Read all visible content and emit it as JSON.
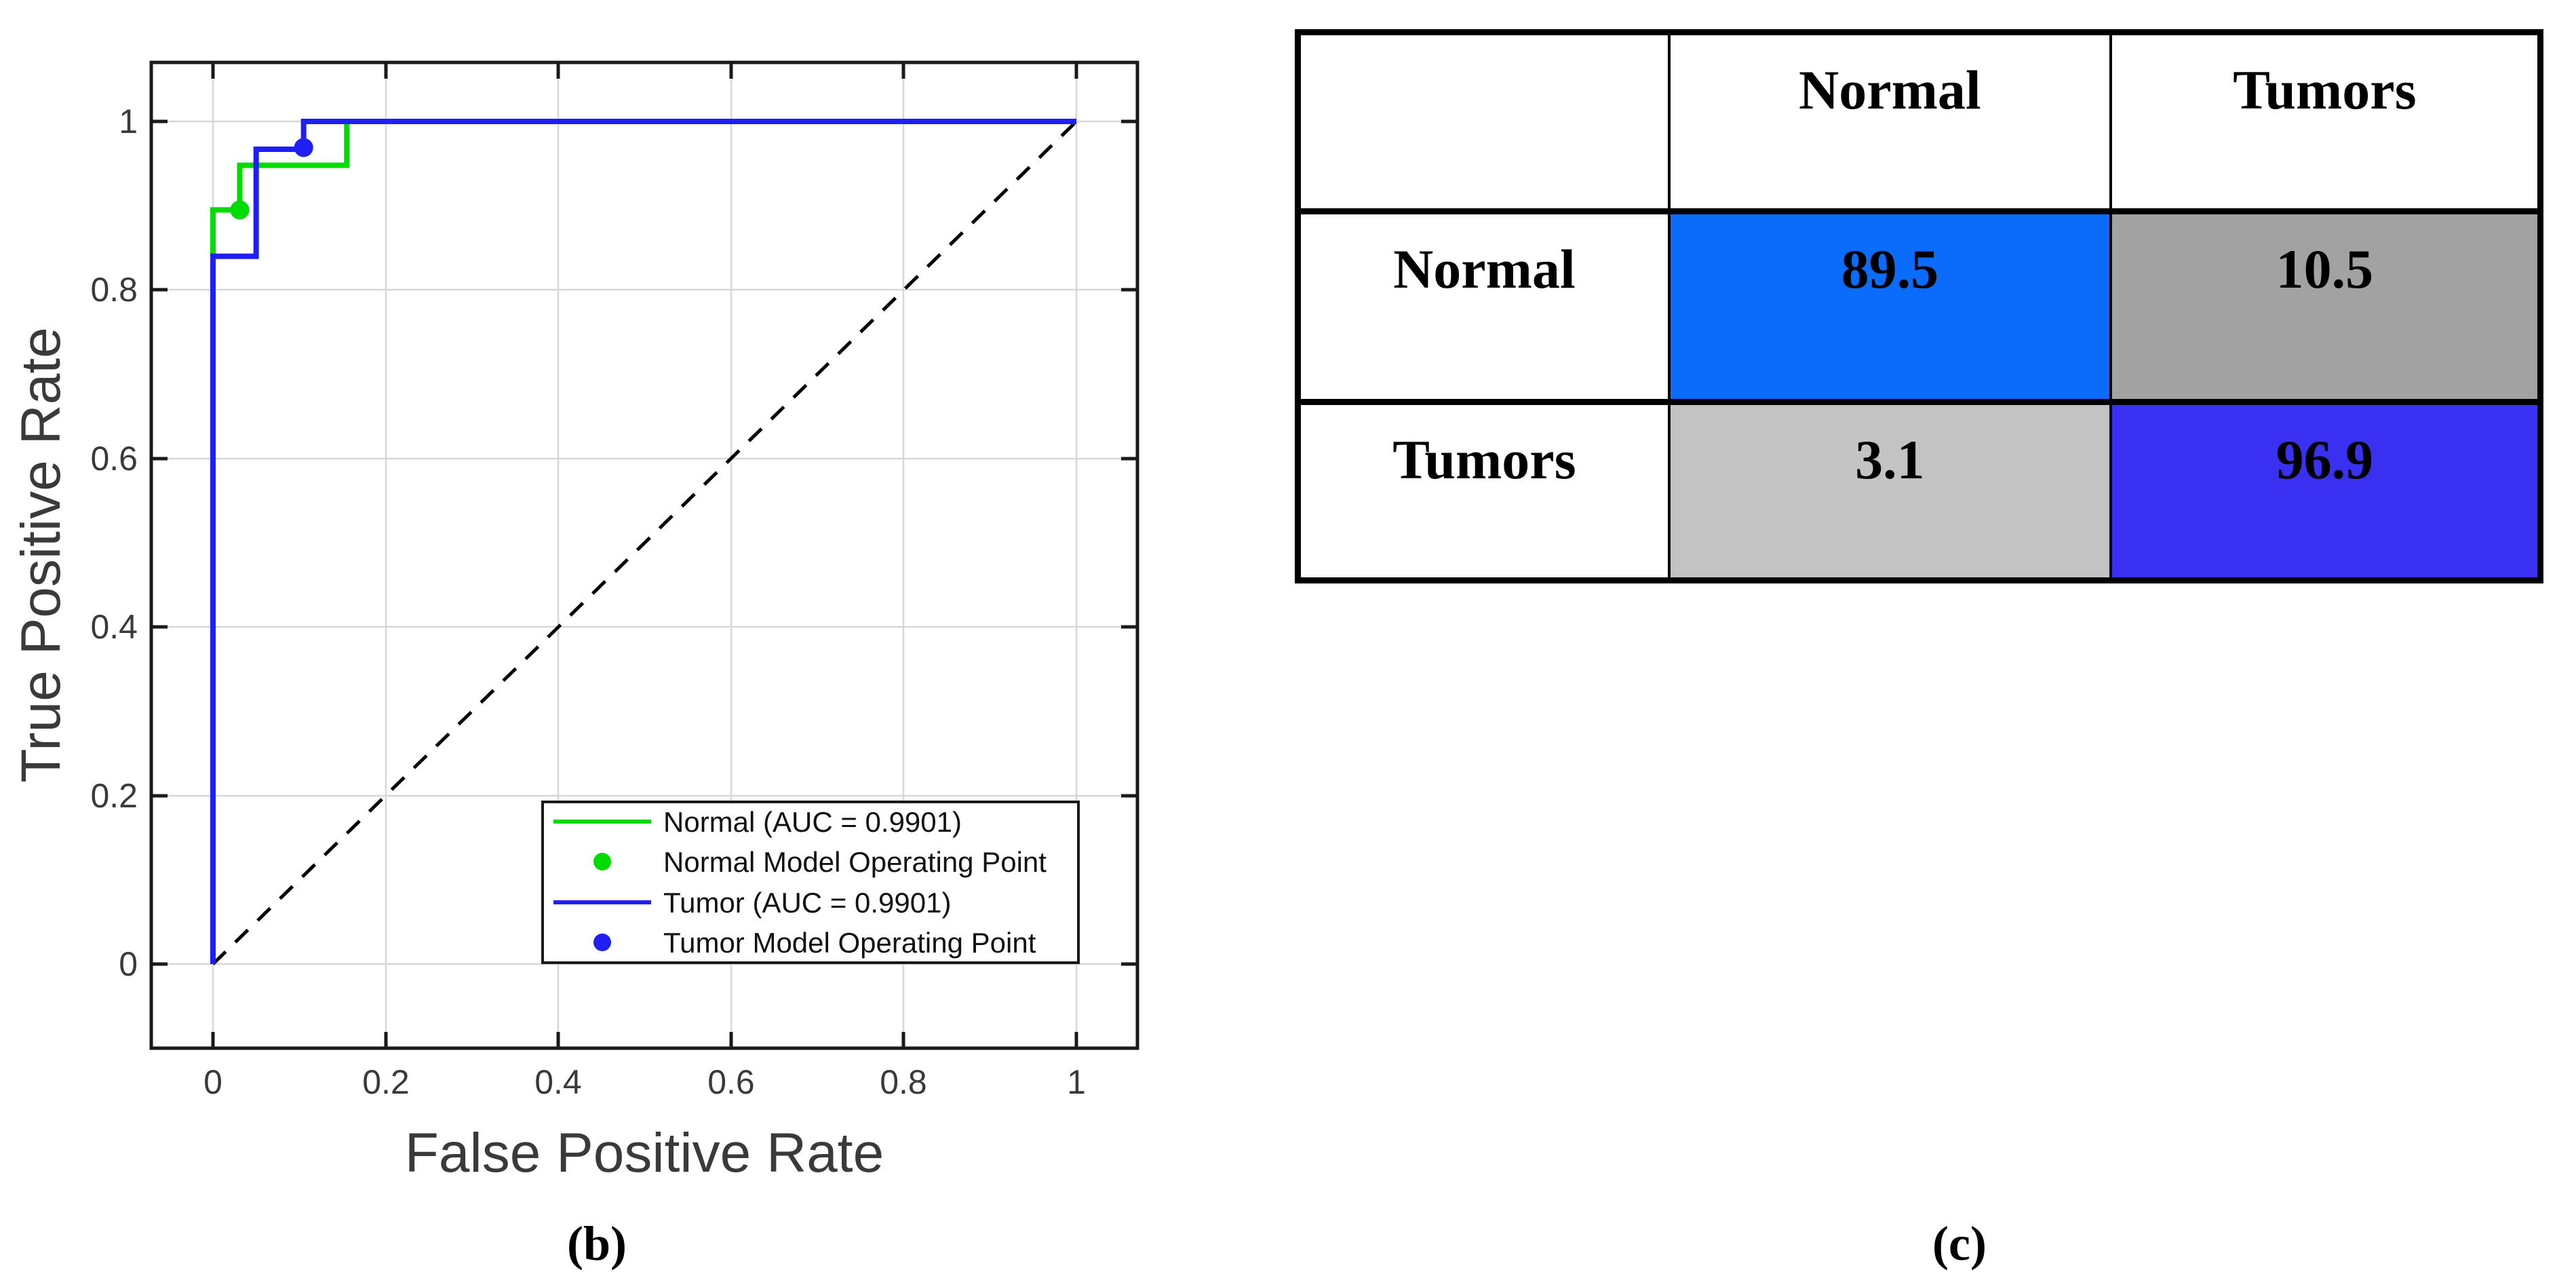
{
  "figure": {
    "panel_b_label": "(b)",
    "panel_c_label": "(c)"
  },
  "chart_data": {
    "type": "line",
    "title": "",
    "xlabel": "False Positive Rate",
    "ylabel": "True Positive Rate",
    "xlim": [
      -0.07,
      1.07
    ],
    "ylim": [
      -0.1,
      1.07
    ],
    "grid": true,
    "x_ticks": [
      "0",
      "0.2",
      "0.4",
      "0.6",
      "0.8",
      "1"
    ],
    "y_ticks": [
      "0",
      "0.2",
      "0.4",
      "0.6",
      "0.8",
      "1"
    ],
    "legend_position": "inside lower right",
    "series": [
      {
        "name": "Normal (AUC = 0.9901)",
        "color": "#00DC00",
        "x": [
          0,
          0,
          0.031,
          0.031,
          0.155,
          0.155,
          1
        ],
        "y": [
          0,
          0.895,
          0.895,
          0.948,
          0.948,
          1,
          1
        ]
      },
      {
        "name": "Tumor (AUC = 0.9901)",
        "color": "#1F1FF5",
        "x": [
          0,
          0,
          0.05,
          0.05,
          0.105,
          0.105,
          1
        ],
        "y": [
          0,
          0.84,
          0.84,
          0.967,
          0.967,
          1,
          1
        ]
      }
    ],
    "operating_points": [
      {
        "name": "Normal Model Operating Point",
        "color": "#00DC00",
        "x": 0.031,
        "y": 0.895
      },
      {
        "name": "Tumor Model Operating Point",
        "color": "#1F1FF5",
        "x": 0.105,
        "y": 0.969
      }
    ],
    "reference_line": {
      "style": "dashed",
      "color": "#000000",
      "from": [
        0,
        0
      ],
      "to": [
        1,
        1
      ]
    }
  },
  "confusion_matrix": {
    "col_headers": [
      "Normal",
      "Tumors"
    ],
    "rows": [
      {
        "label": "Normal",
        "values": [
          "89.5",
          "10.5"
        ],
        "colors": [
          "#0B6BFA",
          "#A2A2A2"
        ]
      },
      {
        "label": "Tumors",
        "values": [
          "3.1",
          "96.9"
        ],
        "colors": [
          "#C3C3C3",
          "#3A30F2"
        ]
      }
    ]
  }
}
